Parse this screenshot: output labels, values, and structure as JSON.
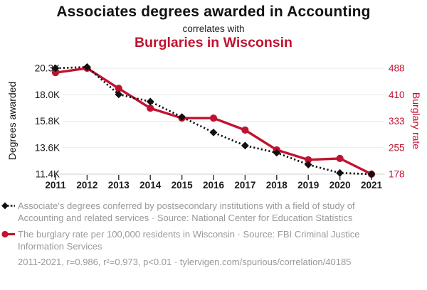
{
  "header": {
    "title": "Associates degrees awarded in Accounting",
    "subtitle": "correlates with",
    "secondary_title": "Burglaries in Wisconsin"
  },
  "colors": {
    "red": "#C1122F",
    "black": "#111111",
    "legend_gray": "#999999",
    "gridline": "#e8e8e8",
    "tick": "#3a3a3a",
    "axis_label": "#1a1a1a"
  },
  "chart_data": {
    "type": "line",
    "x": [
      2011,
      2012,
      2013,
      2014,
      2015,
      2016,
      2017,
      2018,
      2019,
      2020,
      2021
    ],
    "x_tick_labels": [
      "2011",
      "2012",
      "2013",
      "2014",
      "2015",
      "2016",
      "2017",
      "2018",
      "2019",
      "2020",
      "2021"
    ],
    "series": [
      {
        "name": "Associates degrees awarded in Accounting",
        "axis": "left",
        "marker": "diamond",
        "line_style": "dotted",
        "color": "#111111",
        "values": [
          20300,
          20400,
          18100,
          17500,
          16200,
          14900,
          13800,
          13200,
          12200,
          11500,
          11400
        ]
      },
      {
        "name": "Burglaries in Wisconsin (rate per 100,000)",
        "axis": "right",
        "marker": "circle",
        "line_style": "solid",
        "color": "#C1122F",
        "values": [
          475,
          488,
          429,
          371,
          342,
          342,
          307,
          249,
          220,
          224,
          178
        ]
      }
    ],
    "left_axis": {
      "label": "Degrees awarded",
      "tick_labels": [
        "20.3K",
        "18.0K",
        "15.8K",
        "13.6K",
        "11.4K"
      ],
      "max": 20300,
      "min": 11400
    },
    "right_axis": {
      "label": "Burglary rate",
      "tick_labels": [
        "488",
        "410",
        "333",
        "255",
        "178"
      ],
      "max": 488,
      "min": 178
    },
    "grid": true,
    "legend_position": "bottom"
  },
  "legend": {
    "entries": [
      {
        "marker": "black-diamond-dotted-line",
        "text": "Associate's degrees conferred by postsecondary institutions with a field of study of Accounting and related services · Source: National Center for Education Statistics"
      },
      {
        "marker": "red-circle-solid-line",
        "text": "The burglary rate per 100,000 residents in Wisconsin · Source: FBI Criminal Justice Information Services"
      }
    ],
    "stats_line": "2011-2021, r=0.986, r²=0.973, p<0.01 · tylervigen.com/spurious/correlation/40185"
  }
}
